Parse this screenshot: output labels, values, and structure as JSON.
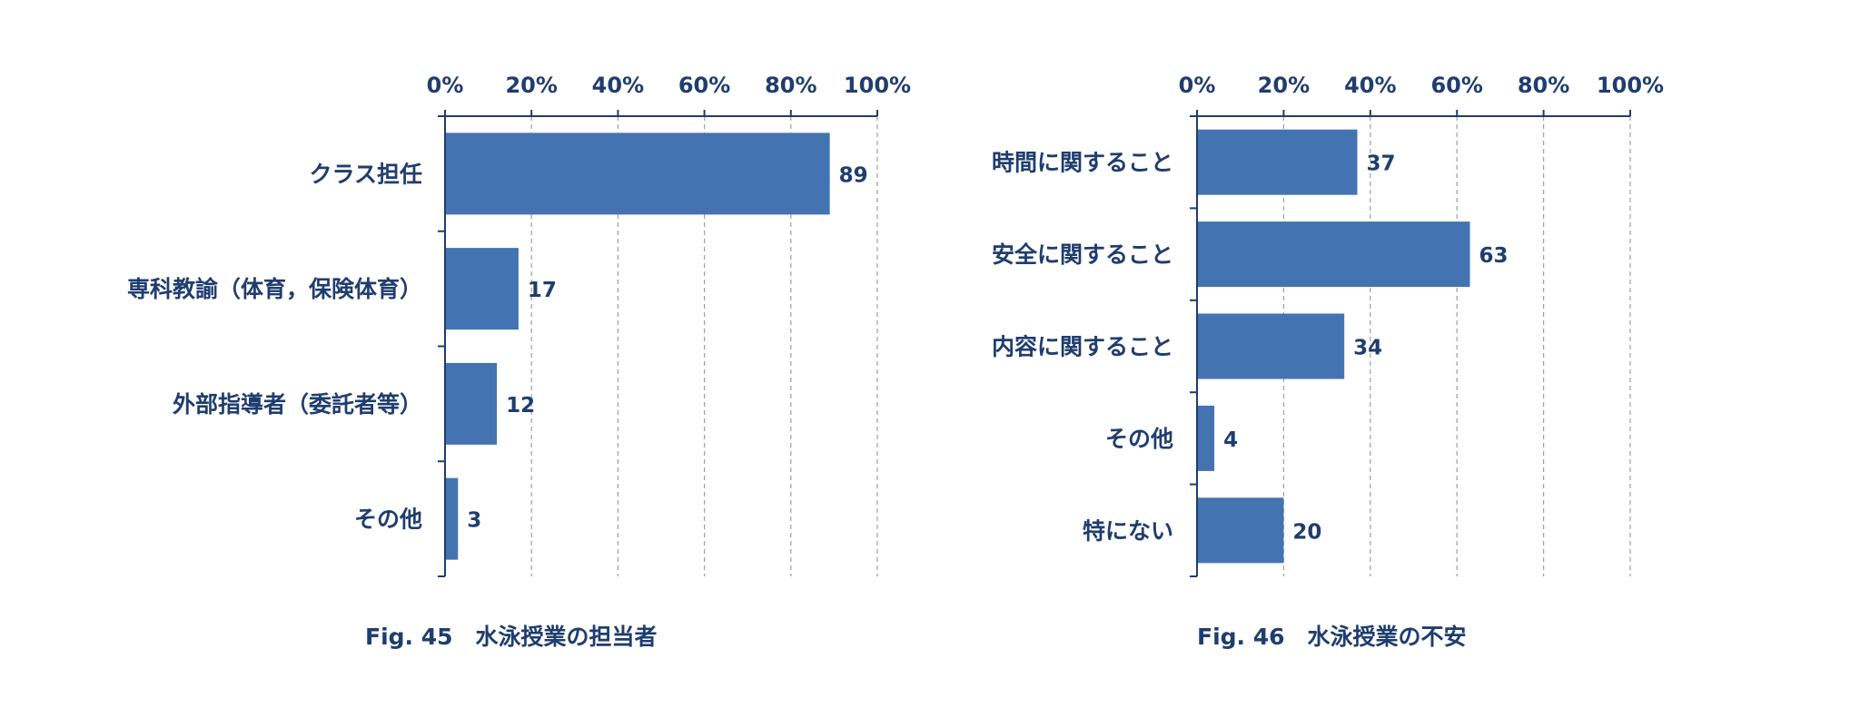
{
  "colors": {
    "bar": "#4374b1",
    "text": "#1f3d6e",
    "axis": "#1f3d6e",
    "grid": "#9aa0a6"
  },
  "chart_data": [
    {
      "type": "bar",
      "orientation": "horizontal",
      "caption": "Fig. 45　水泳授業の担当者",
      "categories": [
        "クラス担任",
        "専科教諭（体育，保険体育）",
        "外部指導者（委託者等）",
        "その他"
      ],
      "values": [
        89,
        17,
        12,
        3
      ],
      "value_labels": [
        "89",
        "17",
        "12",
        "3"
      ],
      "xlim": [
        0,
        100
      ],
      "ticks": [
        0,
        20,
        40,
        60,
        80,
        100
      ],
      "tick_labels": [
        "0%",
        "20%",
        "40%",
        "60%",
        "80%",
        "100%"
      ],
      "axis_position": "top",
      "grid": "dashed vertical"
    },
    {
      "type": "bar",
      "orientation": "horizontal",
      "caption": "Fig. 46　水泳授業の不安",
      "categories": [
        "時間に関すること",
        "安全に関すること",
        "内容に関すること",
        "その他",
        "特にない"
      ],
      "values": [
        37,
        63,
        34,
        4,
        20
      ],
      "value_labels": [
        "37",
        "63",
        "34",
        "4",
        "20"
      ],
      "xlim": [
        0,
        100
      ],
      "ticks": [
        0,
        20,
        40,
        60,
        80,
        100
      ],
      "tick_labels": [
        "0%",
        "20%",
        "40%",
        "60%",
        "80%",
        "100%"
      ],
      "axis_position": "top",
      "grid": "dashed vertical"
    }
  ]
}
